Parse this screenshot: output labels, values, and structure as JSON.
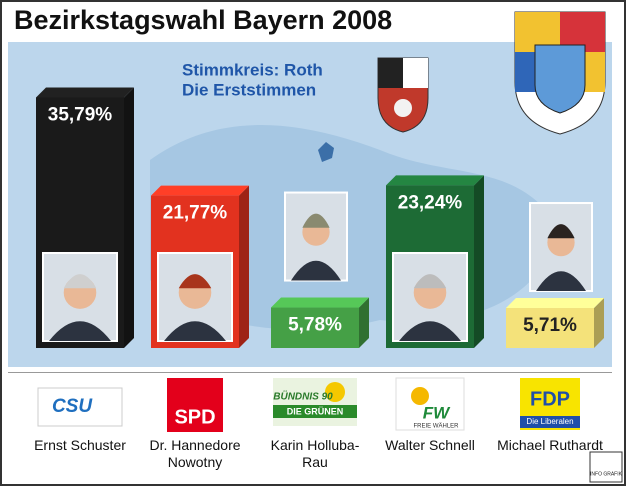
{
  "chart_data": {
    "type": "bar",
    "title": "Bezirkstagswahl Bayern 2008",
    "subtitle": [
      "Stimmkreis: Roth",
      "Die Erststimmen"
    ],
    "categories": [
      "Ernst Schuster",
      "Dr. Hannedore Nowotny",
      "Karin Holluba-Rau",
      "Walter Schnell",
      "Michael Ruthardt"
    ],
    "values": [
      35.79,
      21.77,
      5.78,
      23.24,
      5.71
    ],
    "value_labels": [
      "35,79%",
      "21,77%",
      "5,78%",
      "23,24%",
      "5,71%"
    ],
    "colors": [
      "#1a1a1a",
      "#e2321f",
      "#45a046",
      "#1d6b35",
      "#f4e27a"
    ],
    "parties": [
      {
        "name": "CSU"
      },
      {
        "name": "SPD"
      },
      {
        "name": "BÜNDNIS 90",
        "sub": "DIE GRÜNEN"
      },
      {
        "name": "FW",
        "sub": "FREIE WÄHLER"
      },
      {
        "name": "FDP",
        "sub": "Die Liberalen"
      }
    ],
    "credit": "INFO GRAFIK"
  }
}
